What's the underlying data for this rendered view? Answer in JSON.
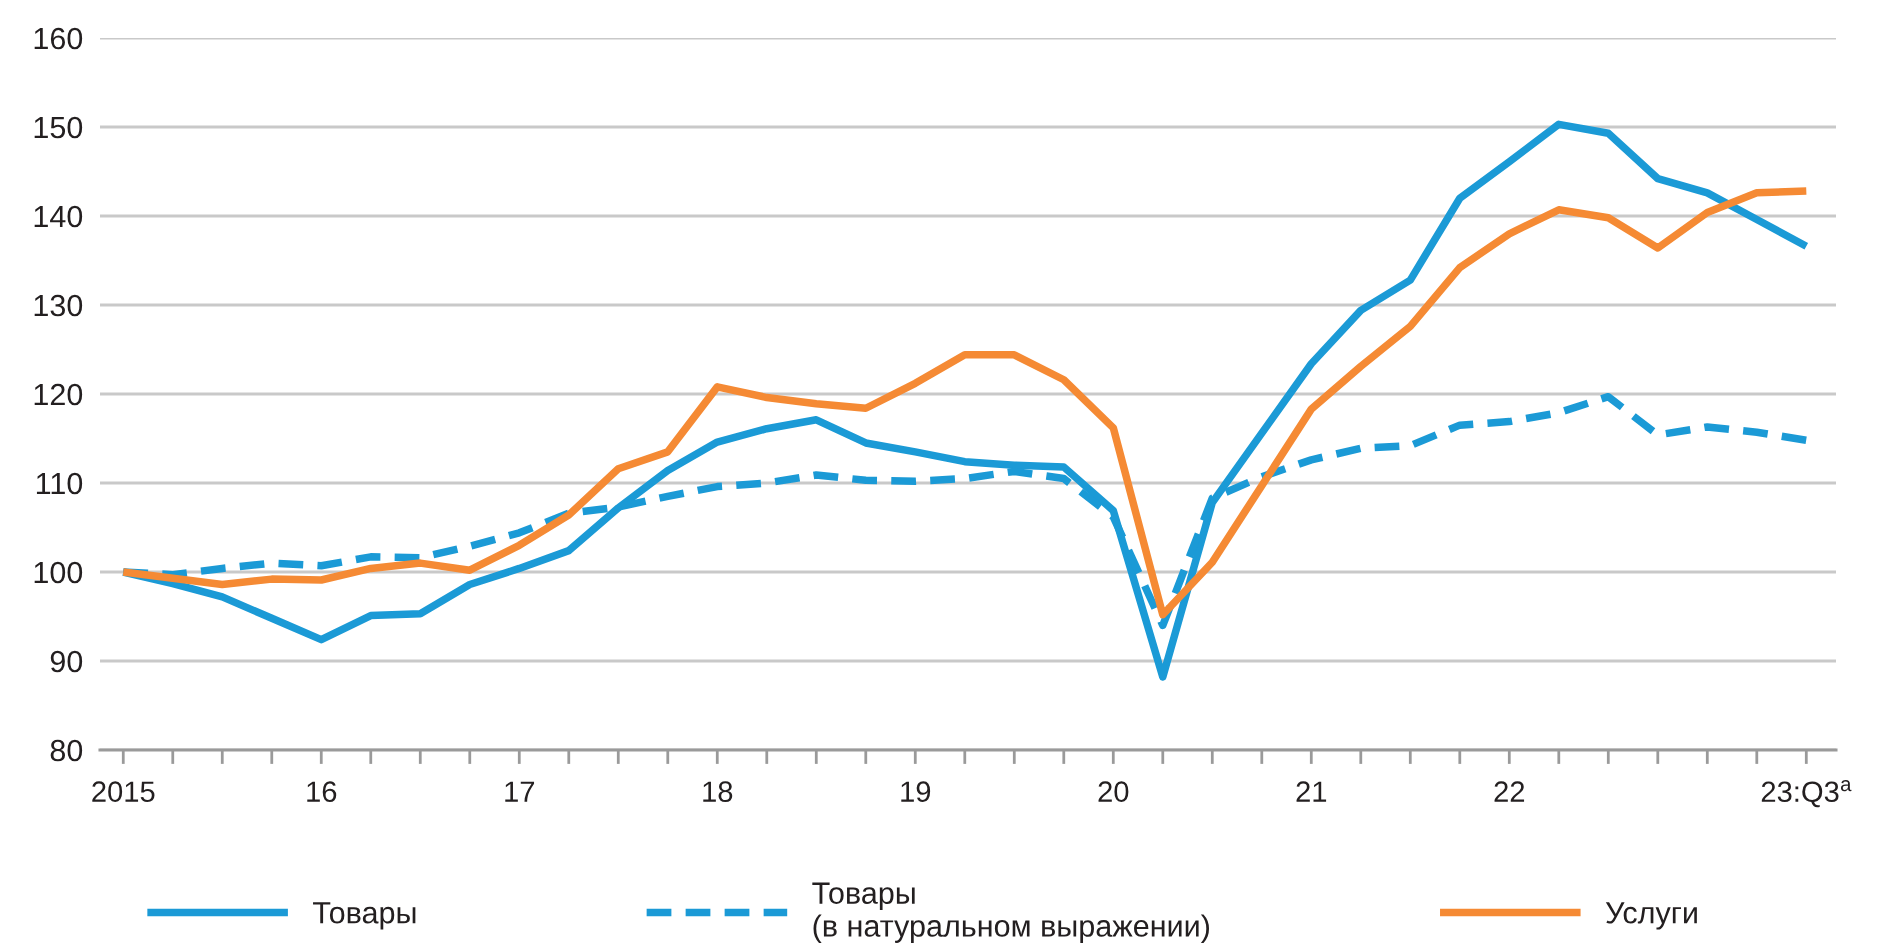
{
  "chart_data": {
    "type": "line",
    "categories": [
      "2015",
      null,
      null,
      null,
      "16",
      null,
      null,
      null,
      "17",
      null,
      null,
      null,
      "18",
      null,
      null,
      null,
      "19",
      null,
      null,
      null,
      "20",
      null,
      null,
      null,
      "21",
      null,
      null,
      null,
      "22",
      null,
      null,
      null,
      null,
      null,
      "23:Q3$^{a}$"
    ],
    "series": [
      {
        "name": "Товары",
        "color": "#1b9ad6",
        "values": [
          100,
          98.7,
          97.2,
          94.8,
          92.4,
          95.1,
          95.3,
          98.6,
          100.4,
          102.4,
          107.2,
          111.4,
          114.6,
          116.1,
          117.1,
          114.5,
          113.5,
          112.4,
          112.0,
          111.8,
          106.9,
          88.2,
          107.8,
          115.6,
          123.4,
          129.4,
          132.8,
          142.0,
          146.1,
          150.3,
          149.3,
          144.2,
          142.6,
          139.6,
          136.6
        ]
      },
      {
        "name": "Товары\n(в натуральном выражении)",
        "color": "#1b9ad6",
        "line_style": "dashed",
        "values": [
          100,
          99.7,
          100.4,
          101.0,
          100.7,
          101.7,
          101.6,
          102.9,
          104.4,
          106.6,
          107.3,
          108.5,
          109.6,
          110.0,
          110.9,
          110.3,
          110.2,
          110.5,
          111.3,
          110.5,
          106.2,
          94.0,
          108.3,
          110.7,
          112.6,
          113.9,
          114.2,
          116.5,
          116.9,
          117.9,
          119.7,
          115.4,
          116.3,
          115.7,
          114.8
        ]
      },
      {
        "name": "Услуги",
        "color": "#f58a34",
        "values": [
          100,
          99.3,
          98.6,
          99.2,
          99.1,
          100.4,
          101.0,
          100.2,
          103.0,
          106.4,
          111.6,
          113.5,
          120.8,
          119.6,
          118.9,
          118.4,
          121.2,
          124.4,
          124.4,
          121.6,
          116.2,
          95.2,
          101.1,
          109.7,
          118.3,
          123.1,
          127.6,
          134.2,
          138.0,
          140.7,
          139.8,
          136.4,
          140.4,
          142.6,
          142.8
        ]
      }
    ],
    "ylim": [
      80,
      160
    ],
    "yticks": [
      80,
      90,
      100,
      110,
      120,
      130,
      140,
      150,
      160
    ],
    "line_style": "solid",
    "grid": "y",
    "legend": "bottom"
  }
}
